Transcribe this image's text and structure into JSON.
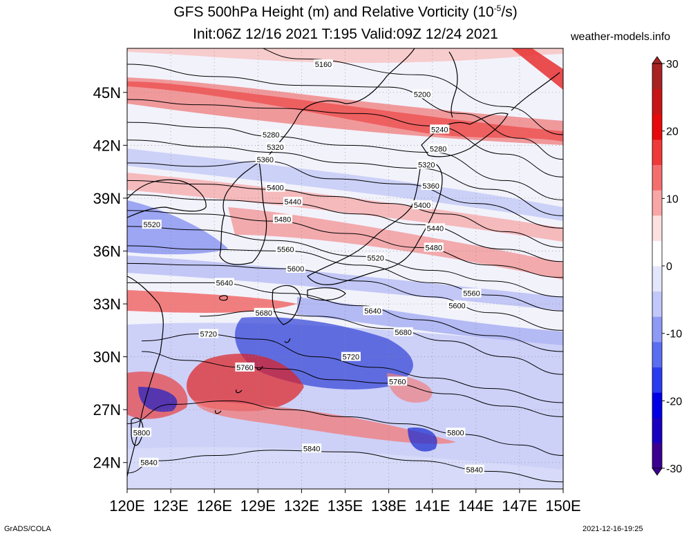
{
  "header": {
    "title_line1": "GFS 500hPa Height (m) and Relative Vorticity (10",
    "title_exp": "-5",
    "title_line1_end": "/s)",
    "title_line2": "Init:06Z 12/16 2021 T:195 Valid:09Z 12/24 2021",
    "site": "weather-models.info"
  },
  "footer": {
    "left": "GrADS/COLA",
    "right": "2021-12-16-19:25"
  },
  "map": {
    "lon_range": [
      120,
      150
    ],
    "lat_range": [
      22.5,
      47.5
    ],
    "lat_ticks": [
      {
        "value": 45,
        "label": "45N"
      },
      {
        "value": 42,
        "label": "42N"
      },
      {
        "value": 39,
        "label": "39N"
      },
      {
        "value": 36,
        "label": "36N"
      },
      {
        "value": 33,
        "label": "33N"
      },
      {
        "value": 30,
        "label": "30N"
      },
      {
        "value": 27,
        "label": "27N"
      },
      {
        "value": 24,
        "label": "24N"
      }
    ],
    "lon_ticks": [
      {
        "value": 120,
        "label": "120E"
      },
      {
        "value": 123,
        "label": "123E"
      },
      {
        "value": 126,
        "label": "126E"
      },
      {
        "value": 129,
        "label": "129E"
      },
      {
        "value": 132,
        "label": "132E"
      },
      {
        "value": 135,
        "label": "135E"
      },
      {
        "value": 138,
        "label": "138E"
      },
      {
        "value": 141,
        "label": "141E"
      },
      {
        "value": 144,
        "label": "144E"
      },
      {
        "value": 147,
        "label": "147E"
      },
      {
        "value": 150,
        "label": "150E"
      }
    ],
    "contours": [
      {
        "value": "5160",
        "pts": [
          [
            127.5,
            47.8
          ],
          [
            132,
            46.9
          ],
          [
            140,
            46.0
          ],
          [
            146,
            44.2
          ],
          [
            150,
            42.6
          ]
        ],
        "labels": [
          [
            133.5,
            46.6
          ]
        ]
      },
      {
        "value": "5200",
        "pts": [
          [
            120,
            46.6
          ],
          [
            126,
            45.9
          ],
          [
            132,
            45.4
          ],
          [
            138,
            45.3
          ],
          [
            143,
            43.8
          ],
          [
            147,
            42.4
          ],
          [
            150,
            41.2
          ]
        ],
        "labels": [
          [
            140.3,
            44.9
          ]
        ]
      },
      {
        "value": "5240",
        "pts": [
          [
            120,
            44.6
          ],
          [
            125,
            44.3
          ],
          [
            130,
            44.1
          ],
          [
            136,
            43.8
          ],
          [
            141,
            43.1
          ],
          [
            146,
            41.5
          ],
          [
            150,
            40.2
          ]
        ],
        "labels": [
          [
            141.5,
            42.9
          ]
        ]
      },
      {
        "value": "5280",
        "pts": [
          [
            120,
            43.3
          ],
          [
            126,
            43.0
          ],
          [
            130,
            42.5
          ],
          [
            135,
            42.0
          ],
          [
            141,
            41.6
          ],
          [
            146,
            40.0
          ],
          [
            150,
            38.9
          ]
        ],
        "labels": [
          [
            129.9,
            42.6
          ],
          [
            141.4,
            41.8
          ]
        ]
      },
      {
        "value": "5320",
        "pts": [
          [
            120,
            42.3
          ],
          [
            126,
            41.9
          ],
          [
            130,
            41.6
          ],
          [
            135,
            41.0
          ],
          [
            140,
            40.7
          ],
          [
            145,
            39.5
          ],
          [
            150,
            38.0
          ]
        ],
        "labels": [
          [
            130.2,
            41.9
          ],
          [
            140.6,
            40.9
          ]
        ]
      },
      {
        "value": "5360",
        "pts": [
          [
            120,
            41.0
          ],
          [
            125,
            40.8
          ],
          [
            129.5,
            41.1
          ],
          [
            134,
            40.1
          ],
          [
            139,
            39.8
          ],
          [
            144,
            38.7
          ],
          [
            150,
            37.3
          ]
        ],
        "labels": [
          [
            129.5,
            41.2
          ],
          [
            140.9,
            39.7
          ]
        ]
      },
      {
        "value": "5400",
        "pts": [
          [
            120,
            40.0
          ],
          [
            125,
            39.8
          ],
          [
            130,
            39.5
          ],
          [
            134,
            39.1
          ],
          [
            138,
            38.7
          ],
          [
            142,
            38.1
          ],
          [
            146,
            37.1
          ],
          [
            150,
            36.2
          ]
        ],
        "labels": [
          [
            130.2,
            39.6
          ],
          [
            140.3,
            38.6
          ]
        ]
      },
      {
        "value": "5440",
        "pts": [
          [
            120,
            39.2
          ],
          [
            126,
            38.9
          ],
          [
            131,
            38.7
          ],
          [
            136,
            38.1
          ],
          [
            140,
            37.5
          ],
          [
            146,
            36.1
          ],
          [
            150,
            35.4
          ]
        ],
        "labels": [
          [
            131.4,
            38.8
          ],
          [
            141.2,
            37.3
          ]
        ]
      },
      {
        "value": "5480",
        "pts": [
          [
            120,
            38.3
          ],
          [
            125,
            38.1
          ],
          [
            130,
            37.7
          ],
          [
            135,
            37.0
          ],
          [
            140,
            36.2
          ],
          [
            145,
            35.2
          ],
          [
            150,
            34.5
          ]
        ],
        "labels": [
          [
            130.7,
            37.8
          ],
          [
            141.1,
            36.2
          ]
        ]
      },
      {
        "value": "5520",
        "pts": [
          [
            120,
            37.4
          ],
          [
            125,
            37.2
          ],
          [
            130,
            36.6
          ],
          [
            136,
            35.7
          ],
          [
            141,
            34.9
          ],
          [
            145,
            34.3
          ],
          [
            150,
            33.4
          ]
        ],
        "labels": [
          [
            121.7,
            37.5
          ],
          [
            137.1,
            35.6
          ]
        ]
      },
      {
        "value": "5560",
        "pts": [
          [
            120,
            36.3
          ],
          [
            125,
            36.1
          ],
          [
            131,
            36.0
          ],
          [
            136,
            35.2
          ],
          [
            141,
            34.2
          ],
          [
            145,
            33.5
          ],
          [
            150,
            32.6
          ]
        ],
        "labels": [
          [
            130.9,
            36.1
          ],
          [
            143.7,
            33.6
          ]
        ]
      },
      {
        "value": "5600",
        "pts": [
          [
            120,
            35.3
          ],
          [
            125,
            35.2
          ],
          [
            131,
            35.0
          ],
          [
            136,
            34.3
          ],
          [
            141,
            33.4
          ],
          [
            145,
            32.5
          ],
          [
            150,
            31.5
          ]
        ],
        "labels": [
          [
            131.6,
            35.0
          ],
          [
            142.7,
            32.9
          ]
        ]
      },
      {
        "value": "5640",
        "pts": [
          [
            120,
            34.2
          ],
          [
            126,
            34.2
          ],
          [
            131,
            33.6
          ],
          [
            136,
            32.9
          ],
          [
            140,
            32.1
          ],
          [
            145,
            31.2
          ],
          [
            150,
            30.3
          ]
        ],
        "labels": [
          [
            126.7,
            34.2
          ],
          [
            136.9,
            32.6
          ]
        ]
      },
      {
        "value": "5680",
        "pts": [
          [
            125,
            32.3
          ],
          [
            129,
            32.6
          ],
          [
            133,
            32.3
          ],
          [
            138,
            31.6
          ],
          [
            142,
            30.9
          ],
          [
            146,
            30.0
          ],
          [
            150,
            29.0
          ]
        ],
        "labels": [
          [
            129.4,
            32.5
          ],
          [
            139.0,
            31.4
          ]
        ]
      },
      {
        "value": "5720",
        "pts": [
          [
            121,
            30.9
          ],
          [
            125,
            31.3
          ],
          [
            129,
            31.0
          ],
          [
            133,
            30.0
          ],
          [
            137,
            29.4
          ],
          [
            141,
            28.8
          ],
          [
            145,
            28.2
          ],
          [
            150,
            27.4
          ]
        ],
        "labels": [
          [
            125.6,
            31.3
          ],
          [
            135.4,
            30.0
          ]
        ]
      },
      {
        "value": "5760",
        "pts": [
          [
            121,
            30.3
          ],
          [
            124,
            29.8
          ],
          [
            128,
            29.4
          ],
          [
            131,
            29.3
          ],
          [
            134,
            28.7
          ],
          [
            138,
            28.5
          ],
          [
            142,
            27.9
          ],
          [
            146,
            27.2
          ],
          [
            150,
            26.6
          ]
        ],
        "labels": [
          [
            128.1,
            29.4
          ],
          [
            138.6,
            28.6
          ]
        ]
      },
      {
        "value": "5800",
        "pts": [
          [
            120,
            26.2
          ],
          [
            123,
            27.3
          ],
          [
            127,
            27.5
          ],
          [
            131,
            27.0
          ],
          [
            135,
            26.6
          ],
          [
            139,
            26.2
          ],
          [
            143,
            25.6
          ],
          [
            147,
            25.0
          ],
          [
            150,
            24.4
          ]
        ],
        "labels": [
          [
            121.0,
            25.7
          ],
          [
            142.6,
            25.7
          ]
        ]
      },
      {
        "value": "5840",
        "pts": [
          [
            120,
            23.4
          ],
          [
            122,
            24.1
          ],
          [
            126,
            24.4
          ],
          [
            130,
            24.7
          ],
          [
            135,
            24.6
          ],
          [
            140,
            24.1
          ],
          [
            145,
            23.5
          ],
          [
            150,
            22.9
          ]
        ],
        "labels": [
          [
            121.5,
            24.0
          ],
          [
            132.7,
            24.8
          ],
          [
            143.9,
            23.6
          ]
        ]
      }
    ]
  },
  "colorbar": {
    "min": -30,
    "max": 30,
    "ticks": [
      {
        "value": 30,
        "label": "30"
      },
      {
        "value": 20,
        "label": "20"
      },
      {
        "value": 10,
        "label": "10"
      },
      {
        "value": 0,
        "label": "0"
      },
      {
        "value": -10,
        "label": "-10"
      },
      {
        "value": -20,
        "label": "-20"
      },
      {
        "value": -30,
        "label": "-30"
      }
    ],
    "colors": [
      "#3c0090",
      "#1a00c0",
      "#0000e6",
      "#2a3cf0",
      "#5a6ef2",
      "#8e9af5",
      "#c2c8fa",
      "#e4e6fb",
      "#ffffff",
      "#fde0e0",
      "#f9a6a6",
      "#f56e6e",
      "#f03a3a",
      "#e80a0a",
      "#c81515",
      "#a82222"
    ]
  }
}
